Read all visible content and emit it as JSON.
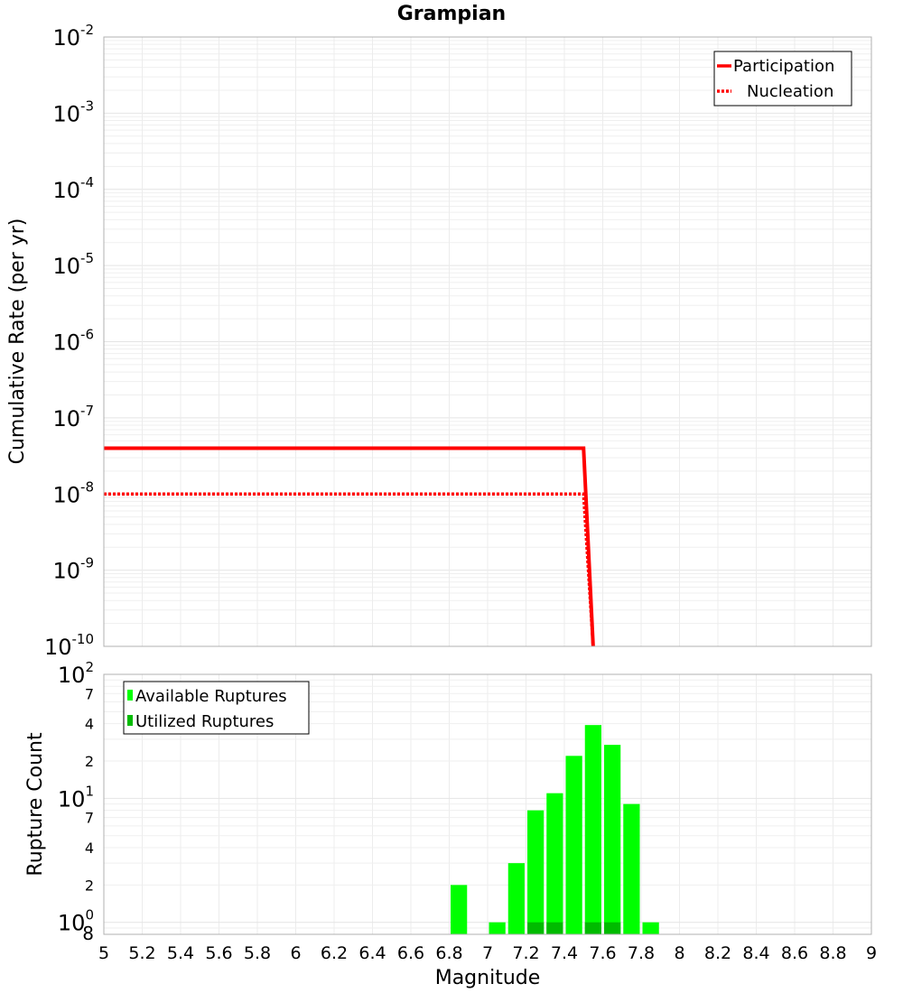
{
  "chart_data": [
    {
      "type": "line",
      "title": "Grampian",
      "xlabel": "",
      "ylabel": "Cumulative Rate (per yr)",
      "xlim": [
        5,
        9
      ],
      "ylim": [
        1e-10,
        0.01
      ],
      "yscale": "log",
      "grid": true,
      "legend_position": "top-right",
      "y_tick_labels": [
        {
          "base": "10",
          "exp": "-2"
        },
        {
          "base": "10",
          "exp": "-3"
        },
        {
          "base": "10",
          "exp": "-4"
        },
        {
          "base": "10",
          "exp": "-5"
        },
        {
          "base": "10",
          "exp": "-6"
        },
        {
          "base": "10",
          "exp": "-7"
        },
        {
          "base": "10",
          "exp": "-8"
        },
        {
          "base": "10",
          "exp": "-9"
        },
        {
          "base": "10",
          "exp": "-10"
        }
      ],
      "series": [
        {
          "name": "Participation",
          "style": "solid",
          "color": "#ff0000",
          "x": [
            5.0,
            7.5,
            7.55
          ],
          "y": [
            4e-08,
            4e-08,
            1e-10
          ]
        },
        {
          "name": "Nucleation",
          "style": "dotted",
          "color": "#ff0000",
          "x": [
            5.0,
            7.5,
            7.55
          ],
          "y": [
            1e-08,
            1e-08,
            1e-10
          ]
        }
      ]
    },
    {
      "type": "bar",
      "title": "",
      "xlabel": "Magnitude",
      "ylabel": "Rupture Count",
      "xlim": [
        5,
        9
      ],
      "ylim": [
        0.8,
        100
      ],
      "yscale": "log",
      "grid": true,
      "legend_position": "top-left",
      "x_tick_labels": [
        "5",
        "5.2",
        "5.4",
        "5.6",
        "5.8",
        "6",
        "6.2",
        "6.4",
        "6.6",
        "6.8",
        "7",
        "7.2",
        "7.4",
        "7.6",
        "7.8",
        "8",
        "8.2",
        "8.4",
        "8.6",
        "8.8",
        "9"
      ],
      "y_tick_labels": [
        {
          "base": "10",
          "exp": "2"
        },
        {
          "base": "",
          "exp": "",
          "minor": "7"
        },
        {
          "base": "",
          "exp": "",
          "minor": "4"
        },
        {
          "base": "",
          "exp": "",
          "minor": "2"
        },
        {
          "base": "10",
          "exp": "1"
        },
        {
          "base": "",
          "exp": "",
          "minor": "7"
        },
        {
          "base": "",
          "exp": "",
          "minor": "4"
        },
        {
          "base": "",
          "exp": "",
          "minor": "2"
        },
        {
          "base": "10",
          "exp": "0"
        },
        {
          "base": "",
          "exp": "",
          "minor": "8"
        }
      ],
      "bin_width": 0.1,
      "series": [
        {
          "name": "Available Ruptures",
          "color": "#00ff00",
          "x": [
            6.85,
            7.05,
            7.15,
            7.25,
            7.35,
            7.45,
            7.55,
            7.65,
            7.75,
            7.85
          ],
          "values": [
            2,
            1,
            3,
            8,
            11,
            22,
            39,
            27,
            9,
            1
          ]
        },
        {
          "name": "Utilized Ruptures",
          "color": "#00bb00",
          "x": [
            7.25,
            7.35,
            7.55,
            7.65
          ],
          "values": [
            1,
            1,
            1,
            1
          ]
        }
      ]
    }
  ]
}
